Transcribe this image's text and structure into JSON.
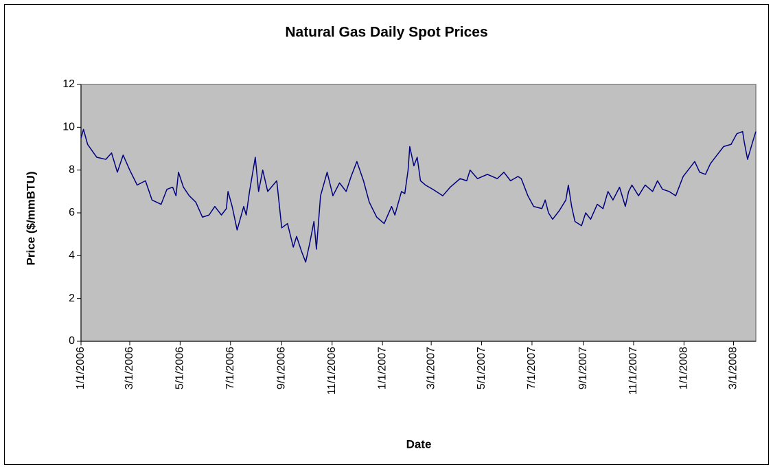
{
  "chart_data": {
    "type": "line",
    "title": "Natural Gas Daily Spot Prices",
    "x_label": "Date",
    "y_label": "Price ($/mmBTU)",
    "color": "#000080",
    "plot_background": "#c0c0c0",
    "grid": false,
    "xlim": [
      "1/1/2006",
      "3/28/2008"
    ],
    "xticks": [
      "1/1/2006",
      "3/1/2006",
      "5/1/2006",
      "7/1/2006",
      "9/1/2006",
      "11/1/2006",
      "1/1/2007",
      "3/1/2007",
      "5/1/2007",
      "7/1/2007",
      "9/1/2007",
      "11/1/2007",
      "1/1/2008",
      "3/1/2008"
    ],
    "ylim": [
      0,
      12
    ],
    "yticks": [
      0,
      2,
      4,
      6,
      8,
      10,
      12
    ],
    "x": [
      "1/1/2006",
      "1/4/2006",
      "1/9/2006",
      "1/20/2006",
      "1/31/2006",
      "2/7/2006",
      "2/14/2006",
      "2/21/2006",
      "3/1/2006",
      "3/10/2006",
      "3/20/2006",
      "3/28/2006",
      "4/8/2006",
      "4/15/2006",
      "4/22/2006",
      "4/26/2006",
      "4/29/2006",
      "5/5/2006",
      "5/12/2006",
      "5/20/2006",
      "5/28/2006",
      "6/5/2006",
      "6/12/2006",
      "6/20/2006",
      "6/26/2006",
      "6/28/2006",
      "7/3/2006",
      "7/9/2006",
      "7/17/2006",
      "7/20/2006",
      "7/24/2006",
      "7/31/2006",
      "8/4/2006",
      "8/9/2006",
      "8/15/2006",
      "8/26/2006",
      "9/1/2006",
      "9/8/2006",
      "9/15/2006",
      "9/19/2006",
      "9/25/2006",
      "9/30/2006",
      "10/5/2006",
      "10/10/2006",
      "10/13/2006",
      "10/18/2006",
      "10/26/2006",
      "11/2/2006",
      "11/10/2006",
      "11/18/2006",
      "11/24/2006",
      "12/1/2006",
      "12/9/2006",
      "12/16/2006",
      "12/25/2006",
      "1/3/2007",
      "1/12/2007",
      "1/16/2007",
      "1/24/2007",
      "1/28/2007",
      "2/1/2007",
      "2/3/2007",
      "2/8/2007",
      "2/12/2007",
      "2/16/2007",
      "2/22/2007",
      "3/3/2007",
      "3/15/2007",
      "3/24/2007",
      "4/5/2007",
      "4/13/2007",
      "4/17/2007",
      "4/26/2007",
      "5/8/2007",
      "5/20/2007",
      "5/28/2007",
      "6/5/2007",
      "6/14/2007",
      "6/18/2007",
      "6/26/2007",
      "7/3/2007",
      "7/13/2007",
      "7/17/2007",
      "7/21/2007",
      "7/26/2007",
      "8/3/2007",
      "8/11/2007",
      "8/14/2007",
      "8/18/2007",
      "8/22/2007",
      "8/30/2007",
      "9/4/2007",
      "9/10/2007",
      "9/18/2007",
      "9/25/2007",
      "10/1/2007",
      "10/7/2007",
      "10/15/2007",
      "10/22/2007",
      "10/26/2007",
      "10/30/2007",
      "11/7/2007",
      "11/15/2007",
      "11/24/2007",
      "11/30/2007",
      "12/6/2007",
      "12/14/2007",
      "12/22/2007",
      "12/31/2007",
      "1/8/2008",
      "1/14/2008",
      "1/20/2008",
      "1/27/2008",
      "2/2/2008",
      "2/10/2008",
      "2/18/2008",
      "2/27/2008",
      "3/5/2008",
      "3/12/2008",
      "3/14/2008",
      "3/18/2008",
      "3/24/2008",
      "3/28/2008"
    ],
    "values": [
      9.5,
      9.9,
      9.2,
      8.6,
      8.5,
      8.8,
      7.9,
      8.7,
      8.0,
      7.3,
      7.5,
      6.6,
      6.4,
      7.1,
      7.2,
      6.8,
      7.9,
      7.2,
      6.8,
      6.5,
      5.8,
      5.9,
      6.3,
      5.9,
      6.2,
      7.0,
      6.3,
      5.2,
      6.3,
      5.9,
      7.0,
      8.6,
      7.0,
      8.0,
      7.0,
      7.5,
      5.3,
      5.5,
      4.4,
      4.9,
      4.2,
      3.7,
      4.6,
      5.6,
      4.3,
      6.8,
      7.9,
      6.8,
      7.4,
      7.0,
      7.7,
      8.4,
      7.5,
      6.5,
      5.8,
      5.5,
      6.3,
      5.9,
      7.0,
      6.9,
      8.0,
      9.1,
      8.2,
      8.6,
      7.5,
      7.3,
      7.1,
      6.8,
      7.2,
      7.6,
      7.5,
      8.0,
      7.6,
      7.8,
      7.6,
      7.9,
      7.5,
      7.7,
      7.6,
      6.8,
      6.3,
      6.2,
      6.6,
      6.0,
      5.7,
      6.1,
      6.6,
      7.3,
      6.3,
      5.6,
      5.4,
      6.0,
      5.7,
      6.4,
      6.2,
      7.0,
      6.6,
      7.2,
      6.3,
      7.0,
      7.3,
      6.8,
      7.3,
      7.0,
      7.5,
      7.1,
      7.0,
      6.8,
      7.7,
      8.1,
      8.4,
      7.9,
      7.8,
      8.3,
      8.7,
      9.1,
      9.2,
      9.7,
      9.8,
      9.3,
      8.5,
      9.3,
      9.8
    ]
  }
}
